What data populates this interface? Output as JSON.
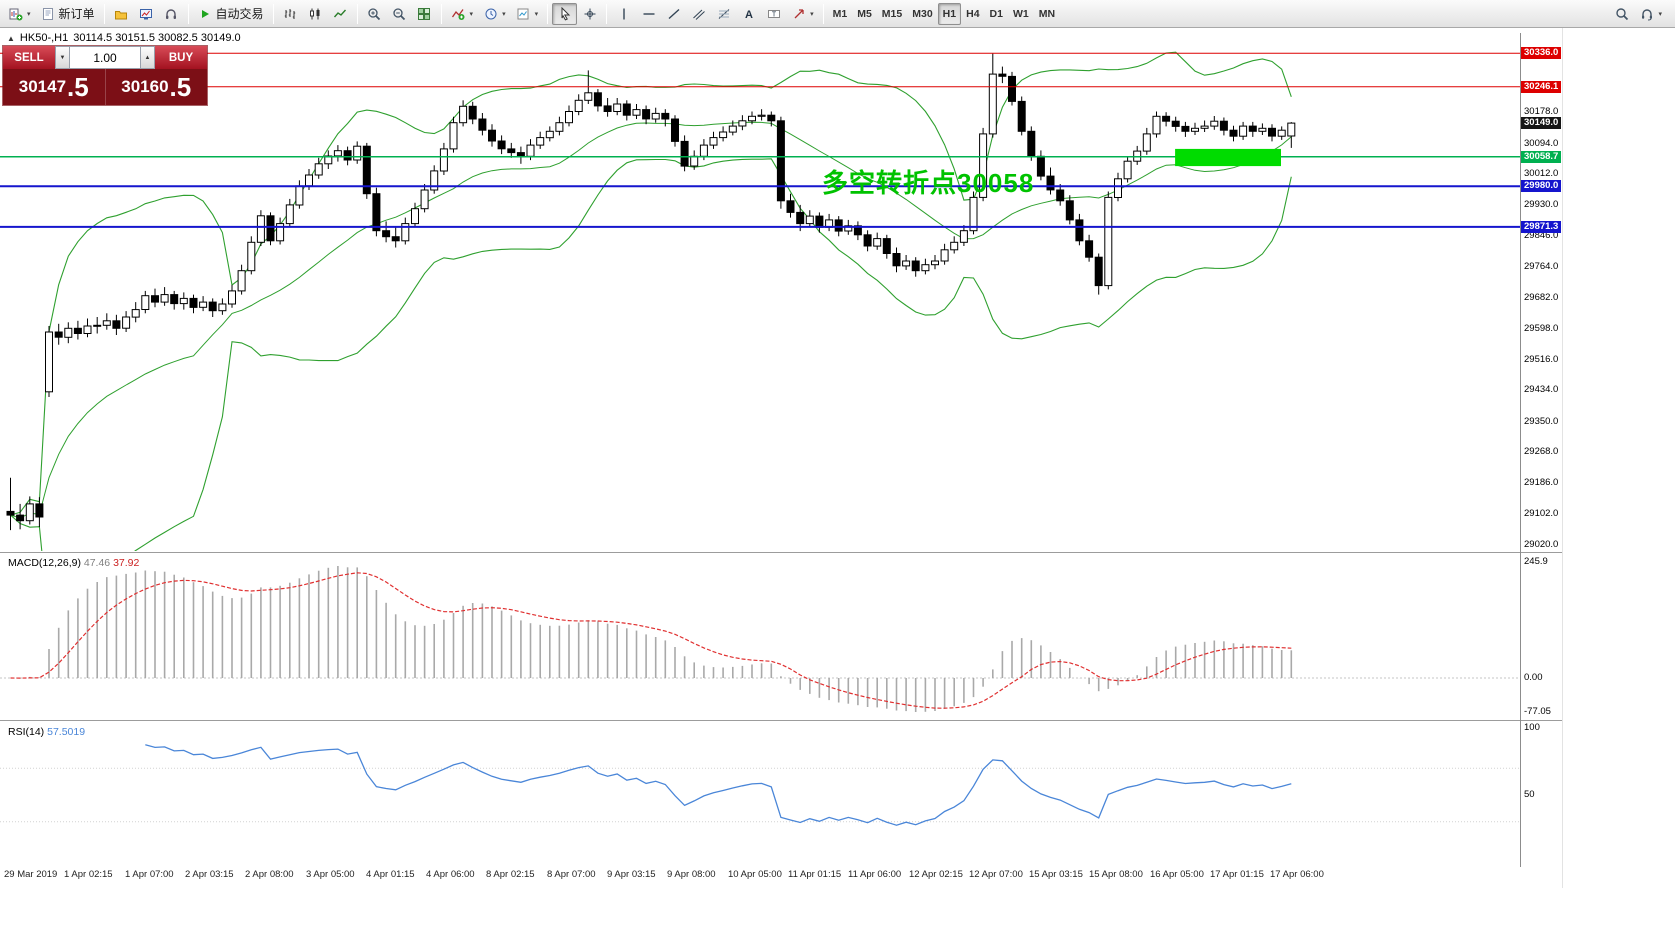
{
  "toolbar": {
    "groups": [
      {
        "items": [
          {
            "icon": "new-chart-icon",
            "name": "new-chart-button",
            "dropdown": true
          },
          {
            "icon": "new-order-icon",
            "label": "新订单",
            "name": "new-order-button"
          }
        ]
      },
      {
        "items": [
          {
            "icon": "profiles-icon",
            "name": "profiles-button"
          },
          {
            "icon": "market-watch-icon",
            "name": "market-watch-button"
          },
          {
            "icon": "metaeditor-icon",
            "name": "metaeditor-button"
          }
        ]
      },
      {
        "items": [
          {
            "icon": "autotrading-icon",
            "label": "自动交易",
            "name": "autotrading-button"
          }
        ]
      },
      {
        "items": [
          {
            "icon": "bar-chart-icon",
            "name": "bar-chart-button"
          },
          {
            "icon": "candlestick-icon",
            "name": "candlestick-button"
          },
          {
            "icon": "line-chart-icon",
            "name": "line-chart-button"
          }
        ]
      },
      {
        "items": [
          {
            "icon": "zoom-in-icon",
            "name": "zoom-in-button"
          },
          {
            "icon": "zoom-out-icon",
            "name": "zoom-out-button"
          },
          {
            "icon": "tile-windows-icon",
            "name": "tile-windows-button"
          }
        ]
      },
      {
        "items": [
          {
            "icon": "indicators-icon",
            "name": "indicators-button",
            "dropdown": true
          },
          {
            "icon": "periods-icon",
            "name": "periods-button",
            "dropdown": true
          },
          {
            "icon": "templates-icon",
            "name": "templates-button",
            "dropdown": true
          }
        ]
      },
      {
        "items": [
          {
            "icon": "cursor-icon",
            "name": "cursor-button",
            "active": true
          },
          {
            "icon": "crosshair-icon",
            "name": "crosshair-button"
          }
        ]
      },
      {
        "items": [
          {
            "icon": "vertical-line-icon",
            "name": "vertical-line-button"
          },
          {
            "icon": "horizontal-line-icon",
            "name": "horizontal-line-button"
          },
          {
            "icon": "trendline-icon",
            "name": "trendline-button"
          },
          {
            "icon": "channel-icon",
            "name": "channel-button"
          },
          {
            "icon": "fibonacci-icon",
            "name": "fibonacci-button"
          },
          {
            "icon": "text-icon",
            "name": "text-button"
          },
          {
            "icon": "label-icon",
            "name": "label-button"
          },
          {
            "icon": "arrows-icon",
            "name": "arrows-button",
            "dropdown": true
          }
        ]
      },
      {
        "items": [
          {
            "label": "M1",
            "tf": true,
            "name": "tf-m1"
          },
          {
            "label": "M5",
            "tf": true,
            "name": "tf-m5"
          },
          {
            "label": "M15",
            "tf": true,
            "name": "tf-m15"
          },
          {
            "label": "M30",
            "tf": true,
            "name": "tf-m30"
          },
          {
            "label": "H1",
            "tf": true,
            "active": true,
            "name": "tf-h1"
          },
          {
            "label": "H4",
            "tf": true,
            "name": "tf-h4"
          },
          {
            "label": "D1",
            "tf": true,
            "name": "tf-d1"
          },
          {
            "label": "W1",
            "tf": true,
            "name": "tf-w1"
          },
          {
            "label": "MN",
            "tf": true,
            "name": "tf-mn"
          }
        ]
      }
    ],
    "right": [
      {
        "icon": "search-icon",
        "name": "search-button"
      },
      {
        "icon": "support-icon",
        "name": "support-button",
        "dropdown": true
      }
    ]
  },
  "chart": {
    "title_symbol": "HK50-,H1",
    "ohlc_text": "30114.5 30151.5 30082.5 30149.0",
    "collapse_glyph": "▲",
    "annotation": "多空转折点30058",
    "trade_panel": {
      "sell_label": "SELL",
      "buy_label": "BUY",
      "volume": "1.00",
      "down_glyph": "▼",
      "up_glyph": "▲",
      "sell_price_int": "30147",
      "sell_price_frac": ".5",
      "buy_price_int": "30160",
      "buy_price_frac": ".5"
    },
    "levels": [
      {
        "price": 30336.0,
        "label": "30336.0",
        "color": "#dd0000",
        "width": 1,
        "line": true,
        "tag": true
      },
      {
        "price": 30246.1,
        "label": "30246.1",
        "color": "#dd0000",
        "width": 1,
        "line": true,
        "tag": true
      },
      {
        "price": 30149.0,
        "label": "30149.0",
        "color": "#161616",
        "width": 1,
        "line": false,
        "tag": true
      },
      {
        "price": 30058.7,
        "label": "30058.7",
        "color": "#00b050",
        "width": 1.5,
        "line": true,
        "tag": true
      },
      {
        "price": 29980.0,
        "label": "29980.0",
        "color": "#1515cd",
        "width": 2,
        "line": true,
        "tag": true
      },
      {
        "price": 29871.3,
        "label": "29871.3",
        "color": "#1515cd",
        "width": 2,
        "line": true,
        "tag": true
      }
    ],
    "y_ticks": [
      "30178.0",
      "30094.0",
      "30012.0",
      "29930.0",
      "29846.0",
      "29764.0",
      "29682.0",
      "29598.0",
      "29516.0",
      "29434.0",
      "29350.0",
      "29268.0",
      "29186.0",
      "29102.0",
      "29020.0"
    ],
    "highlight_rect": {
      "from_bar": 121.3,
      "to_bar": 132.3,
      "price_top": 30080,
      "price_bottom": 30034,
      "color": "#00dc00"
    },
    "time_axis": [
      "29 Mar 2019",
      "1 Apr 02:15",
      "1 Apr 07:00",
      "2 Apr 03:15",
      "2 Apr 08:00",
      "3 Apr 05:00",
      "4 Apr 01:15",
      "4 Apr 06:00",
      "8 Apr 02:15",
      "8 Apr 07:00",
      "9 Apr 03:15",
      "9 Apr 08:00",
      "10 Apr 05:00",
      "11 Apr 01:15",
      "11 Apr 06:00",
      "12 Apr 02:15",
      "12 Apr 07:00",
      "15 Apr 03:15",
      "15 Apr 08:00",
      "16 Apr 05:00",
      "17 Apr 01:15",
      "17 Apr 06:00"
    ]
  },
  "macd_panel": {
    "name": "MACD(12,26,9)",
    "value_main": "47.46",
    "value_signal": "37.92",
    "axis": [
      {
        "v": 245.9,
        "t": "245.9"
      },
      {
        "v": 0,
        "t": "0.00"
      },
      {
        "v": -77.05,
        "t": "-77.05"
      }
    ]
  },
  "rsi_panel": {
    "name": "RSI(14)",
    "value": "57.5019",
    "axis": [
      {
        "v": 100,
        "t": "100"
      },
      {
        "v": 50,
        "t": "50"
      }
    ]
  },
  "chart_data": {
    "type": "candlestick",
    "symbol": "HK50-",
    "timeframe": "H1",
    "last_ohlc": {
      "open": 30114.5,
      "high": 30151.5,
      "low": 30082.5,
      "close": 30149.0
    },
    "indicator_params": {
      "bollinger": {
        "period": 20,
        "deviation": 2
      },
      "macd": {
        "fast": 12,
        "slow": 26,
        "signal": 9
      },
      "rsi": {
        "period": 14
      }
    },
    "candles": [
      [
        29110,
        29200,
        29060,
        29100
      ],
      [
        29100,
        29130,
        29062,
        29085
      ],
      [
        29085,
        29150,
        29075,
        29130
      ],
      [
        29130,
        29148,
        29068,
        29095
      ],
      [
        29430,
        29606,
        29416,
        29590
      ],
      [
        29590,
        29612,
        29556,
        29576
      ],
      [
        29576,
        29616,
        29560,
        29600
      ],
      [
        29600,
        29620,
        29570,
        29586
      ],
      [
        29586,
        29626,
        29576,
        29606
      ],
      [
        29606,
        29630,
        29586,
        29608
      ],
      [
        29608,
        29640,
        29596,
        29620
      ],
      [
        29620,
        29636,
        29582,
        29600
      ],
      [
        29600,
        29646,
        29590,
        29630
      ],
      [
        29630,
        29670,
        29616,
        29650
      ],
      [
        29650,
        29700,
        29640,
        29687
      ],
      [
        29687,
        29706,
        29656,
        29670
      ],
      [
        29670,
        29710,
        29660,
        29690
      ],
      [
        29690,
        29700,
        29650,
        29666
      ],
      [
        29666,
        29696,
        29650,
        29680
      ],
      [
        29680,
        29690,
        29640,
        29656
      ],
      [
        29656,
        29686,
        29646,
        29670
      ],
      [
        29670,
        29680,
        29630,
        29647
      ],
      [
        29647,
        29680,
        29636,
        29665
      ],
      [
        29665,
        29716,
        29655,
        29700
      ],
      [
        29700,
        29770,
        29690,
        29754
      ],
      [
        29754,
        29846,
        29744,
        29830
      ],
      [
        29830,
        29916,
        29820,
        29901
      ],
      [
        29901,
        29910,
        29822,
        29834
      ],
      [
        29834,
        29896,
        29824,
        29880
      ],
      [
        29880,
        29946,
        29870,
        29930
      ],
      [
        29930,
        29996,
        29920,
        29981
      ],
      [
        29981,
        30026,
        29970,
        30010
      ],
      [
        30010,
        30056,
        30000,
        30040
      ],
      [
        30040,
        30076,
        30026,
        30061
      ],
      [
        30061,
        30090,
        30046,
        30075
      ],
      [
        30075,
        30086,
        30036,
        30050
      ],
      [
        30050,
        30100,
        30040,
        30087
      ],
      [
        30087,
        30096,
        29946,
        29960
      ],
      [
        29960,
        29976,
        29846,
        29861
      ],
      [
        29861,
        29886,
        29830,
        29845
      ],
      [
        29845,
        29870,
        29816,
        29834
      ],
      [
        29834,
        29896,
        29824,
        29880
      ],
      [
        29880,
        29936,
        29870,
        29920
      ],
      [
        29920,
        29986,
        29910,
        29970
      ],
      [
        29970,
        30036,
        29960,
        30021
      ],
      [
        30021,
        30096,
        30010,
        30080
      ],
      [
        30080,
        30166,
        30070,
        30150
      ],
      [
        30150,
        30210,
        30140,
        30194
      ],
      [
        30194,
        30206,
        30146,
        30160
      ],
      [
        30160,
        30176,
        30116,
        30130
      ],
      [
        30130,
        30146,
        30086,
        30101
      ],
      [
        30101,
        30116,
        30066,
        30080
      ],
      [
        30080,
        30096,
        30056,
        30070
      ],
      [
        30070,
        30086,
        30040,
        30060
      ],
      [
        30060,
        30106,
        30050,
        30090
      ],
      [
        30090,
        30126,
        30080,
        30110
      ],
      [
        30110,
        30140,
        30100,
        30127
      ],
      [
        30127,
        30166,
        30116,
        30150
      ],
      [
        30150,
        30196,
        30140,
        30180
      ],
      [
        30180,
        30226,
        30170,
        30210
      ],
      [
        30210,
        30290,
        30200,
        30230
      ],
      [
        30230,
        30240,
        30180,
        30195
      ],
      [
        30195,
        30216,
        30166,
        30180
      ],
      [
        30180,
        30216,
        30170,
        30200
      ],
      [
        30200,
        30210,
        30156,
        30170
      ],
      [
        30170,
        30200,
        30160,
        30185
      ],
      [
        30185,
        30196,
        30146,
        30160
      ],
      [
        30160,
        30190,
        30150,
        30175
      ],
      [
        30175,
        30186,
        30140,
        30160
      ],
      [
        30160,
        30170,
        30086,
        30100
      ],
      [
        30100,
        30116,
        30020,
        30034
      ],
      [
        30034,
        30076,
        30024,
        30060
      ],
      [
        30060,
        30106,
        30050,
        30090
      ],
      [
        30090,
        30126,
        30080,
        30110
      ],
      [
        30110,
        30140,
        30100,
        30125
      ],
      [
        30125,
        30156,
        30116,
        30141
      ],
      [
        30141,
        30170,
        30130,
        30155
      ],
      [
        30155,
        30180,
        30146,
        30167
      ],
      [
        30167,
        30186,
        30156,
        30170
      ],
      [
        30170,
        30180,
        30140,
        30155
      ],
      [
        30155,
        30166,
        29920,
        29941
      ],
      [
        29941,
        29960,
        29896,
        29910
      ],
      [
        29910,
        29930,
        29860,
        29880
      ],
      [
        29880,
        29916,
        29870,
        29900
      ],
      [
        29900,
        29910,
        29856,
        29870
      ],
      [
        29870,
        29906,
        29860,
        29890
      ],
      [
        29890,
        29900,
        29846,
        29860
      ],
      [
        29860,
        29890,
        29850,
        29874
      ],
      [
        29874,
        29886,
        29836,
        29850
      ],
      [
        29850,
        29862,
        29806,
        29820
      ],
      [
        29820,
        29856,
        29810,
        29840
      ],
      [
        29840,
        29850,
        29786,
        29800
      ],
      [
        29800,
        29816,
        29750,
        29767
      ],
      [
        29767,
        29796,
        29756,
        29780
      ],
      [
        29780,
        29790,
        29738,
        29754
      ],
      [
        29754,
        29786,
        29744,
        29770
      ],
      [
        29770,
        29796,
        29758,
        29780
      ],
      [
        29780,
        29826,
        29770,
        29810
      ],
      [
        29810,
        29846,
        29800,
        29830
      ],
      [
        29830,
        29876,
        29820,
        29861
      ],
      [
        29861,
        29966,
        29851,
        29950
      ],
      [
        29950,
        30136,
        29940,
        30120
      ],
      [
        30120,
        30335,
        30110,
        30280
      ],
      [
        30280,
        30300,
        30256,
        30274
      ],
      [
        30274,
        30286,
        30196,
        30207
      ],
      [
        30207,
        30220,
        30116,
        30127
      ],
      [
        30127,
        30140,
        30048,
        30060
      ],
      [
        30060,
        30076,
        29996,
        30007
      ],
      [
        30007,
        30030,
        29958,
        29970
      ],
      [
        29970,
        29986,
        29928,
        29941
      ],
      [
        29941,
        29956,
        29878,
        29890
      ],
      [
        29890,
        29906,
        29822,
        29834
      ],
      [
        29834,
        29850,
        29778,
        29790
      ],
      [
        29790,
        29800,
        29690,
        29714
      ],
      [
        29714,
        29966,
        29704,
        29950
      ],
      [
        29950,
        30016,
        29940,
        30000
      ],
      [
        30000,
        30060,
        29990,
        30047
      ],
      [
        30047,
        30088,
        30037,
        30074
      ],
      [
        30074,
        30136,
        30064,
        30120
      ],
      [
        30120,
        30180,
        30110,
        30167
      ],
      [
        30167,
        30178,
        30140,
        30154
      ],
      [
        30154,
        30166,
        30126,
        30140
      ],
      [
        30140,
        30152,
        30112,
        30127
      ],
      [
        30127,
        30150,
        30117,
        30135
      ],
      [
        30135,
        30156,
        30125,
        30141
      ],
      [
        30141,
        30168,
        30131,
        30154
      ],
      [
        30154,
        30164,
        30116,
        30130
      ],
      [
        30130,
        30142,
        30100,
        30114
      ],
      [
        30114,
        30152,
        30104,
        30141
      ],
      [
        30141,
        30152,
        30112,
        30127
      ],
      [
        30127,
        30148,
        30117,
        30135
      ],
      [
        30135,
        30146,
        30100,
        30114
      ],
      [
        30114,
        30140,
        30104,
        30130
      ],
      [
        30114.5,
        30151.5,
        30082.5,
        30149
      ]
    ]
  }
}
